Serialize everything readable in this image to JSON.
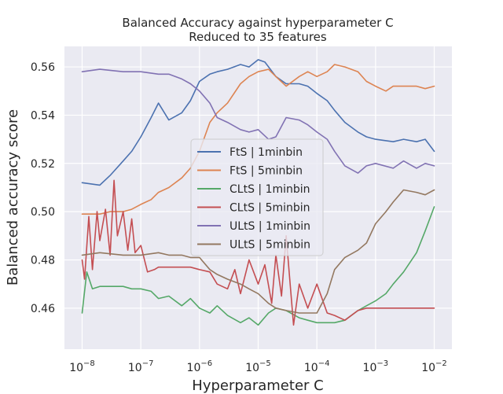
{
  "chart_data": {
    "type": "line",
    "title": "Balanced Accuracy against hyperparameter C",
    "subtitle": "Reduced to 35 features",
    "xlabel": "Hyperparameter C",
    "ylabel": "Balanced accuracy score",
    "xscale": "log",
    "xlim": [
      5e-09,
      0.02
    ],
    "ylim": [
      0.443,
      0.5685
    ],
    "xticks": [
      {
        "value": 1e-08,
        "base": "10",
        "exp": "−8"
      },
      {
        "value": 1e-07,
        "base": "10",
        "exp": "−7"
      },
      {
        "value": 1e-06,
        "base": "10",
        "exp": "−6"
      },
      {
        "value": 1e-05,
        "base": "10",
        "exp": "−5"
      },
      {
        "value": 0.0001,
        "base": "10",
        "exp": "−4"
      },
      {
        "value": 0.001,
        "base": "10",
        "exp": "−3"
      },
      {
        "value": 0.01,
        "base": "10",
        "exp": "−2"
      }
    ],
    "yticks": [
      0.46,
      0.48,
      0.5,
      0.52,
      0.54,
      0.56
    ],
    "ytick_labels": [
      "0.46",
      "0.48",
      "0.50",
      "0.52",
      "0.54",
      "0.56"
    ],
    "grid": true,
    "legend_position": "center",
    "series": [
      {
        "name": "FtS | 1minbin",
        "color": "#4c72b0",
        "x": [
          1e-08,
          2e-08,
          3e-08,
          5e-08,
          7e-08,
          1e-07,
          1.5e-07,
          2e-07,
          3e-07,
          5e-07,
          7e-07,
          1e-06,
          1.5e-06,
          2e-06,
          3e-06,
          5e-06,
          7e-06,
          1e-05,
          1.3e-05,
          2e-05,
          3e-05,
          5e-05,
          7e-05,
          0.0001,
          0.00015,
          0.0002,
          0.0003,
          0.0005,
          0.0007,
          0.001,
          0.002,
          0.003,
          0.005,
          0.007,
          0.01
        ],
        "y": [
          0.512,
          0.511,
          0.515,
          0.521,
          0.525,
          0.531,
          0.539,
          0.545,
          0.538,
          0.541,
          0.546,
          0.554,
          0.557,
          0.558,
          0.559,
          0.561,
          0.56,
          0.563,
          0.562,
          0.556,
          0.553,
          0.553,
          0.552,
          0.549,
          0.546,
          0.542,
          0.537,
          0.533,
          0.531,
          0.53,
          0.529,
          0.53,
          0.529,
          0.53,
          0.525
        ]
      },
      {
        "name": "FtS | 5minbin",
        "color": "#dd8452",
        "x": [
          1e-08,
          2e-08,
          3e-08,
          5e-08,
          7e-08,
          1e-07,
          1.5e-07,
          2e-07,
          3e-07,
          5e-07,
          7e-07,
          1e-06,
          1.5e-06,
          2e-06,
          3e-06,
          5e-06,
          7e-06,
          1e-05,
          1.5e-05,
          2e-05,
          3e-05,
          5e-05,
          7e-05,
          0.0001,
          0.00015,
          0.0002,
          0.0003,
          0.0005,
          0.0007,
          0.001,
          0.0015,
          0.002,
          0.003,
          0.005,
          0.007,
          0.01
        ],
        "y": [
          0.499,
          0.499,
          0.5,
          0.5,
          0.501,
          0.503,
          0.505,
          0.508,
          0.51,
          0.514,
          0.518,
          0.525,
          0.537,
          0.541,
          0.545,
          0.553,
          0.556,
          0.558,
          0.559,
          0.556,
          0.552,
          0.556,
          0.558,
          0.556,
          0.558,
          0.561,
          0.56,
          0.558,
          0.554,
          0.552,
          0.55,
          0.552,
          0.552,
          0.552,
          0.551,
          0.552
        ]
      },
      {
        "name": "CLtS | 1minbin",
        "color": "#55a868",
        "x": [
          1e-08,
          1.2e-08,
          1.5e-08,
          2e-08,
          3e-08,
          5e-08,
          7e-08,
          1e-07,
          1.5e-07,
          2e-07,
          3e-07,
          5e-07,
          7e-07,
          1e-06,
          1.5e-06,
          2e-06,
          3e-06,
          5e-06,
          7e-06,
          1e-05,
          1.5e-05,
          2e-05,
          3e-05,
          5e-05,
          7e-05,
          0.0001,
          0.00015,
          0.0002,
          0.0003,
          0.0005,
          0.0007,
          0.001,
          0.0015,
          0.002,
          0.003,
          0.005,
          0.007,
          0.01
        ],
        "y": [
          0.458,
          0.475,
          0.468,
          0.469,
          0.469,
          0.469,
          0.468,
          0.468,
          0.467,
          0.464,
          0.465,
          0.461,
          0.464,
          0.46,
          0.458,
          0.461,
          0.457,
          0.454,
          0.456,
          0.453,
          0.458,
          0.46,
          0.459,
          0.456,
          0.455,
          0.454,
          0.454,
          0.454,
          0.455,
          0.459,
          0.461,
          0.463,
          0.466,
          0.47,
          0.475,
          0.483,
          0.492,
          0.502
        ]
      },
      {
        "name": "CLtS | 5minbin",
        "color": "#c44e52",
        "x": [
          1e-08,
          1.1e-08,
          1.3e-08,
          1.5e-08,
          1.8e-08,
          2e-08,
          2.5e-08,
          3e-08,
          3.5e-08,
          4e-08,
          5e-08,
          6e-08,
          7e-08,
          8e-08,
          1e-07,
          1.3e-07,
          1.7e-07,
          2e-07,
          3e-07,
          5e-07,
          7e-07,
          1e-06,
          1.5e-06,
          2e-06,
          3e-06,
          4e-06,
          5e-06,
          7e-06,
          1e-05,
          1.3e-05,
          1.7e-05,
          2e-05,
          2.5e-05,
          3e-05,
          4e-05,
          5e-05,
          7e-05,
          0.0001,
          0.00015,
          0.0002,
          0.0003,
          0.0005,
          0.0007,
          0.001,
          0.002,
          0.005,
          0.01
        ],
        "y": [
          0.48,
          0.472,
          0.498,
          0.476,
          0.5,
          0.488,
          0.501,
          0.482,
          0.513,
          0.49,
          0.5,
          0.484,
          0.497,
          0.483,
          0.486,
          0.475,
          0.476,
          0.477,
          0.477,
          0.477,
          0.477,
          0.476,
          0.475,
          0.47,
          0.468,
          0.476,
          0.466,
          0.48,
          0.47,
          0.478,
          0.462,
          0.482,
          0.465,
          0.49,
          0.453,
          0.47,
          0.46,
          0.47,
          0.458,
          0.457,
          0.455,
          0.459,
          0.46,
          0.46,
          0.46,
          0.46,
          0.46
        ]
      },
      {
        "name": "ULtS | 1minbin",
        "color": "#8172b3",
        "x": [
          1e-08,
          2e-08,
          5e-08,
          1e-07,
          2e-07,
          3e-07,
          5e-07,
          7e-07,
          1e-06,
          1.5e-06,
          2e-06,
          3e-06,
          5e-06,
          7e-06,
          1e-05,
          1.5e-05,
          2e-05,
          3e-05,
          5e-05,
          7e-05,
          0.0001,
          0.00015,
          0.0002,
          0.0003,
          0.0005,
          0.0007,
          0.001,
          0.002,
          0.003,
          0.005,
          0.007,
          0.01
        ],
        "y": [
          0.558,
          0.559,
          0.558,
          0.558,
          0.557,
          0.557,
          0.555,
          0.553,
          0.55,
          0.545,
          0.539,
          0.537,
          0.534,
          0.533,
          0.534,
          0.53,
          0.531,
          0.539,
          0.538,
          0.536,
          0.533,
          0.53,
          0.525,
          0.519,
          0.516,
          0.519,
          0.52,
          0.518,
          0.521,
          0.518,
          0.52,
          0.519
        ]
      },
      {
        "name": "ULtS | 5minbin",
        "color": "#937860",
        "x": [
          1e-08,
          2e-08,
          5e-08,
          1e-07,
          2e-07,
          3e-07,
          5e-07,
          7e-07,
          1e-06,
          1.5e-06,
          2e-06,
          3e-06,
          5e-06,
          7e-06,
          1e-05,
          1.5e-05,
          2e-05,
          3e-05,
          5e-05,
          7e-05,
          0.0001,
          0.00015,
          0.0002,
          0.0003,
          0.0005,
          0.0007,
          0.001,
          0.0015,
          0.002,
          0.003,
          0.005,
          0.007,
          0.01
        ],
        "y": [
          0.482,
          0.483,
          0.482,
          0.482,
          0.483,
          0.482,
          0.482,
          0.481,
          0.481,
          0.476,
          0.474,
          0.472,
          0.47,
          0.468,
          0.466,
          0.462,
          0.46,
          0.459,
          0.458,
          0.458,
          0.458,
          0.466,
          0.476,
          0.481,
          0.484,
          0.487,
          0.495,
          0.5,
          0.504,
          0.509,
          0.508,
          0.507,
          0.509
        ]
      }
    ]
  }
}
